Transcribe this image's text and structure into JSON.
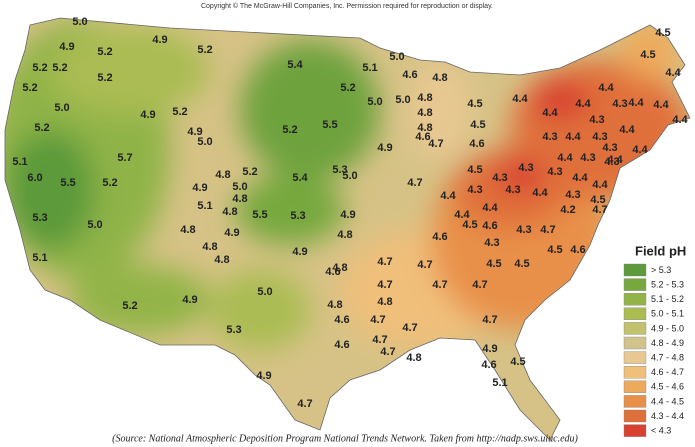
{
  "copyright": "Copyright © The McGraw-Hill Companies, Inc. Permission required for reproduction or display.",
  "source": "(Source: National Atmospheric Deposition Program National Trends Network. Taken from http://nadp.sws.uiuc.edu)",
  "legend": {
    "title": "Field pH",
    "items": [
      {
        "label": "> 5.3",
        "color": "#5c9a3a"
      },
      {
        "label": "5.2 - 5.3",
        "color": "#76a83e"
      },
      {
        "label": "5.1 - 5.2",
        "color": "#92b446"
      },
      {
        "label": "5.0 - 5.1",
        "color": "#aabc52"
      },
      {
        "label": "4.9 - 5.0",
        "color": "#c2c26c"
      },
      {
        "label": "4.8 - 4.9",
        "color": "#d2c28c"
      },
      {
        "label": "4.7 - 4.8",
        "color": "#e8c892"
      },
      {
        "label": "4.6 - 4.7",
        "color": "#f0bf7a"
      },
      {
        "label": "4.5 - 4.6",
        "color": "#eeaa5c"
      },
      {
        "label": "4.4 - 4.5",
        "color": "#e89048"
      },
      {
        "label": "4.3 - 4.4",
        "color": "#e0703a"
      },
      {
        "label": "< 4.3",
        "color": "#d84030"
      }
    ]
  },
  "labels": [
    "5.0",
    "4.9",
    "5.2",
    "5.2",
    "5.2",
    "5.0",
    "5.2",
    "5.1",
    "6.0",
    "5.5",
    "5.2",
    "5.3",
    "5.0",
    "5.1",
    "5.2",
    "4.9",
    "5.2",
    "5.2",
    "4.9",
    "5.2",
    "4.9",
    "5.0",
    "5.7",
    "5.2",
    "5.5",
    "5.4",
    "5.1",
    "5.0",
    "5.2",
    "5.0",
    "4.6",
    "4.8",
    "5.0",
    "4.8",
    "4.8",
    "4.8",
    "4.6",
    "4.7",
    "4.9",
    "5.3",
    "5.4",
    "5.0",
    "5.2",
    "4.8",
    "5.0",
    "4.9",
    "4.8",
    "5.1",
    "4.8",
    "5.5",
    "5.3",
    "4.9",
    "4.9",
    "4.8",
    "4.8",
    "4.8",
    "4.9",
    "4.8",
    "4.6",
    "4.8",
    "5.0",
    "4.9",
    "5.2",
    "5.3",
    "4.8",
    "4.9",
    "4.6",
    "4.6",
    "4.7",
    "4.7",
    "4.8",
    "4.7",
    "4.7",
    "4.7",
    "4.7",
    "4.7",
    "4.7",
    "4.7",
    "4.8",
    "4.7",
    "4.9",
    "4.6",
    "4.5",
    "5.1",
    "4.7",
    "4.6",
    "4.7",
    "4.4",
    "4.5",
    "4.3",
    "4.3",
    "4.3",
    "4.3",
    "4.4",
    "4.3",
    "4.4",
    "4.4",
    "4.3",
    "4.5",
    "4.5",
    "4.5",
    "4.6",
    "4.5",
    "4.5",
    "4.4",
    "4.4",
    "4.4",
    "4.4",
    "4.3",
    "4.4",
    "4.4",
    "4.3",
    "4.4",
    "4.3",
    "4.4",
    "4.3",
    "4.4",
    "4.4",
    "4.3",
    "4.3",
    "4.4",
    "4.3",
    "4.4",
    "4.3",
    "4.4",
    "4.2",
    "4.7",
    "4.6",
    "4.5",
    "4.3",
    "4.6",
    "4.5",
    "4.5",
    "4.4",
    "4.4",
    "4.5",
    "4.7"
  ]
}
